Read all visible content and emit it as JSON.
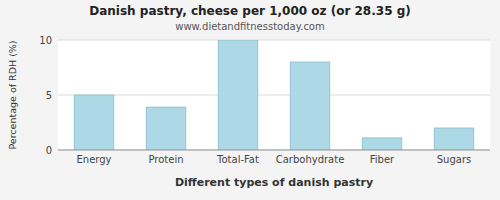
{
  "chart_data": {
    "type": "bar",
    "title": "Danish pastry, cheese per 1,000 oz (or 28.35 g)",
    "subtitle": "www.dietandfitnesstoday.com",
    "xlabel": "Different types of danish pastry",
    "ylabel": "Percentage of RDH (%)",
    "categories": [
      "Energy",
      "Protein",
      "Total-Fat",
      "Carbohydrate",
      "Fiber",
      "Sugars"
    ],
    "values": [
      5.0,
      3.9,
      10.0,
      8.0,
      1.1,
      2.0
    ],
    "color": "#add8e6",
    "ylim": [
      0,
      10
    ],
    "yticks": [
      0,
      5,
      10
    ],
    "grid": true
  }
}
